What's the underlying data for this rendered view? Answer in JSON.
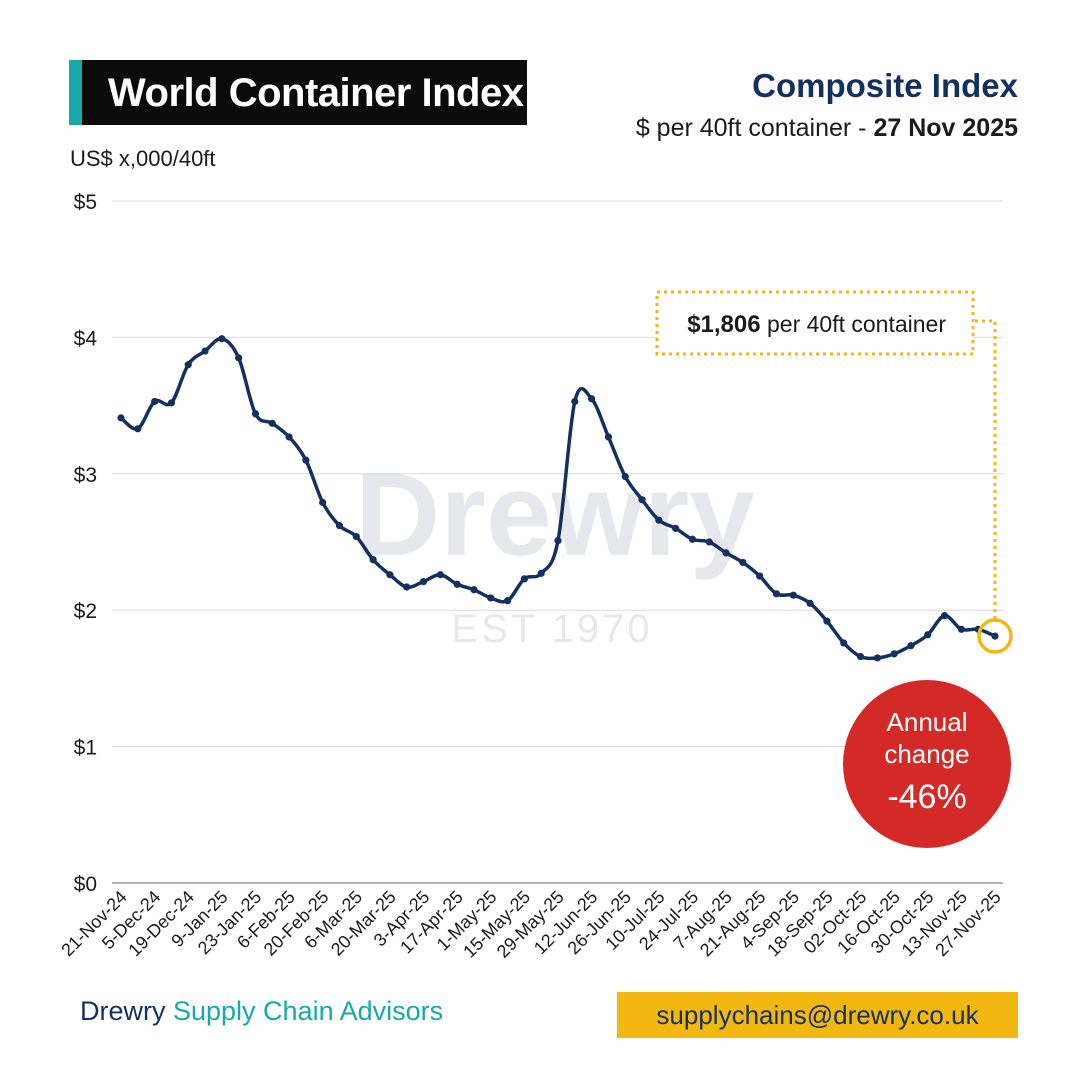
{
  "header": {
    "title": "World Container Index",
    "subtitle": "Composite Index",
    "subline_prefix": "$ per 40ft container - ",
    "subline_date": "27 Nov 2025",
    "unit_label": "US$ x,000/40ft"
  },
  "callout": {
    "value": "$1,806",
    "suffix": " per 40ft container"
  },
  "annual_change": {
    "line1": "Annual",
    "line2": "change",
    "value": "-46%"
  },
  "footer": {
    "brand": "Drewry",
    "division": " Supply Chain Advisors",
    "email": "supplychains@drewry.co.uk"
  },
  "watermark": {
    "name": "Drewry",
    "est": "EST 1970"
  },
  "colors": {
    "line": "#14305f",
    "accent_teal": "#17a9a9",
    "callout_yellow": "#f3b711",
    "badge_red": "#d42a27",
    "grid": "#d9d9d9"
  },
  "chart_data": {
    "type": "line",
    "title": "Composite Index",
    "ylabel": "US$ x,000/40ft",
    "ylim": [
      0,
      5
    ],
    "y_ticks": [
      0,
      1,
      2,
      3,
      4,
      5
    ],
    "y_tick_labels": [
      "$0",
      "$1",
      "$2",
      "$3",
      "$4",
      "$5"
    ],
    "x_tick_labels": [
      "21-Nov-24",
      "5-Dec-24",
      "19-Dec-24",
      "9-Jan-25",
      "23-Jan-25",
      "6-Feb-25",
      "20-Feb-25",
      "6-Mar-25",
      "20-Mar-25",
      "3-Apr-25",
      "17-Apr-25",
      "1-May-25",
      "15-May-25",
      "29-May-25",
      "12-Jun-25",
      "26-Jun-25",
      "10-Jul-25",
      "24-Jul-25",
      "7-Aug-25",
      "21-Aug-25",
      "4-Sep-25",
      "18-Sep-25",
      "02-Oct-25",
      "16-Oct-25",
      "30-Oct-25",
      "13-Nov-25",
      "27-Nov-25"
    ],
    "grid": true,
    "series": [
      {
        "values": [
          3.41,
          3.33,
          3.53,
          3.52,
          3.8,
          3.9,
          3.99,
          3.85,
          3.44,
          3.37,
          3.27,
          3.1,
          2.79,
          2.62,
          2.54,
          2.37,
          2.26,
          2.17,
          2.21,
          2.26,
          2.19,
          2.15,
          2.09,
          2.07,
          2.23,
          2.27,
          2.51,
          3.53,
          3.55,
          3.27,
          2.98,
          2.81,
          2.66,
          2.6,
          2.52,
          2.5,
          2.42,
          2.35,
          2.25,
          2.12,
          2.11,
          2.05,
          1.92,
          1.76,
          1.66,
          1.65,
          1.68,
          1.74,
          1.82,
          1.96,
          1.86,
          1.86,
          1.81
        ]
      }
    ],
    "annotations": [
      {
        "text": "$1,806 per 40ft container",
        "x": "27-Nov-25",
        "y": 1.806
      },
      {
        "text": "Annual change -46%"
      }
    ]
  }
}
